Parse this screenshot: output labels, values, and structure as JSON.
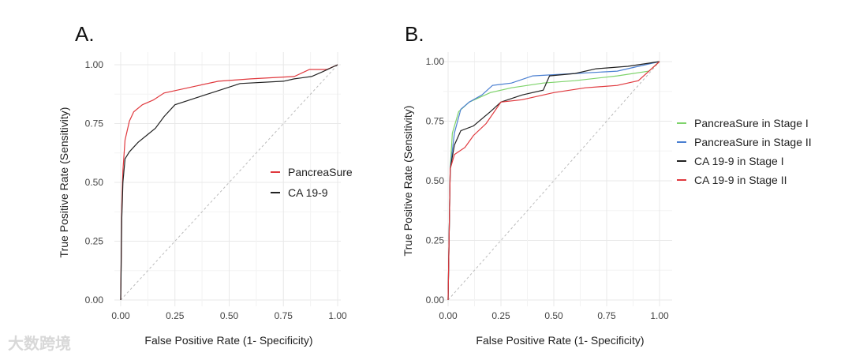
{
  "watermark": "大数跨境",
  "chart_data": [
    {
      "type": "line",
      "panel_label": "A.",
      "xlabel": "False Positive Rate (1- Specificity)",
      "ylabel": "True Positive Rate (Sensitivity)",
      "xlim": [
        0,
        1
      ],
      "ylim": [
        0,
        1
      ],
      "xticks": [
        "0.00",
        "0.25",
        "0.50",
        "0.75",
        "1.00"
      ],
      "yticks": [
        "0.00",
        "0.25",
        "0.50",
        "0.75",
        "1.00"
      ],
      "grid": true,
      "legend_position": "right",
      "reference_line": "diagonal",
      "series": [
        {
          "name": "PancreaSure",
          "color": "#e0393e",
          "x": [
            0,
            0.005,
            0.01,
            0.02,
            0.04,
            0.06,
            0.1,
            0.15,
            0.2,
            0.25,
            0.35,
            0.45,
            0.6,
            0.8,
            0.87,
            0.95,
            1
          ],
          "y": [
            0,
            0.4,
            0.55,
            0.68,
            0.76,
            0.8,
            0.83,
            0.85,
            0.88,
            0.89,
            0.91,
            0.93,
            0.94,
            0.95,
            0.98,
            0.98,
            1
          ]
        },
        {
          "name": "CA 19-9",
          "color": "#222222",
          "x": [
            0,
            0.005,
            0.01,
            0.02,
            0.04,
            0.08,
            0.12,
            0.16,
            0.2,
            0.25,
            0.35,
            0.45,
            0.55,
            0.75,
            0.8,
            0.88,
            0.93,
            1
          ],
          "y": [
            0,
            0.35,
            0.5,
            0.6,
            0.63,
            0.67,
            0.7,
            0.73,
            0.78,
            0.83,
            0.86,
            0.89,
            0.92,
            0.93,
            0.94,
            0.95,
            0.97,
            1
          ]
        }
      ]
    },
    {
      "type": "line",
      "panel_label": "B.",
      "xlabel": "False Positive Rate (1- Specificity)",
      "ylabel": "True Positive Rate (Sensitivity)",
      "xlim": [
        0,
        1
      ],
      "ylim": [
        0,
        1
      ],
      "xticks": [
        "0.00",
        "0.25",
        "0.50",
        "0.75",
        "1.00"
      ],
      "yticks": [
        "0.00",
        "0.25",
        "0.50",
        "0.75",
        "1.00"
      ],
      "grid": true,
      "legend_position": "right",
      "reference_line": "diagonal",
      "series": [
        {
          "name": "PancreaSure in Stage I",
          "color": "#7ed36b",
          "x": [
            0,
            0.01,
            0.02,
            0.05,
            0.1,
            0.2,
            0.3,
            0.45,
            0.6,
            0.8,
            0.95,
            1
          ],
          "y": [
            0,
            0.55,
            0.7,
            0.79,
            0.83,
            0.87,
            0.89,
            0.91,
            0.92,
            0.94,
            0.96,
            1
          ]
        },
        {
          "name": "PancreaSure in Stage II",
          "color": "#4a7fd1",
          "x": [
            0,
            0.01,
            0.03,
            0.06,
            0.1,
            0.16,
            0.21,
            0.3,
            0.4,
            0.6,
            0.8,
            0.9,
            1
          ],
          "y": [
            0,
            0.55,
            0.7,
            0.8,
            0.83,
            0.86,
            0.9,
            0.91,
            0.94,
            0.95,
            0.96,
            0.98,
            1
          ]
        },
        {
          "name": "CA 19-9 in Stage I",
          "color": "#222222",
          "x": [
            0,
            0.01,
            0.03,
            0.06,
            0.12,
            0.2,
            0.25,
            0.35,
            0.45,
            0.48,
            0.6,
            0.7,
            0.85,
            1
          ],
          "y": [
            0,
            0.55,
            0.65,
            0.71,
            0.73,
            0.79,
            0.83,
            0.86,
            0.88,
            0.94,
            0.95,
            0.97,
            0.98,
            1
          ]
        },
        {
          "name": "CA 19-9 in Stage II",
          "color": "#e0393e",
          "x": [
            0,
            0.01,
            0.03,
            0.08,
            0.12,
            0.18,
            0.25,
            0.35,
            0.5,
            0.65,
            0.8,
            0.9,
            1
          ],
          "y": [
            0,
            0.55,
            0.61,
            0.64,
            0.69,
            0.74,
            0.83,
            0.84,
            0.87,
            0.89,
            0.9,
            0.92,
            1
          ]
        }
      ]
    }
  ]
}
